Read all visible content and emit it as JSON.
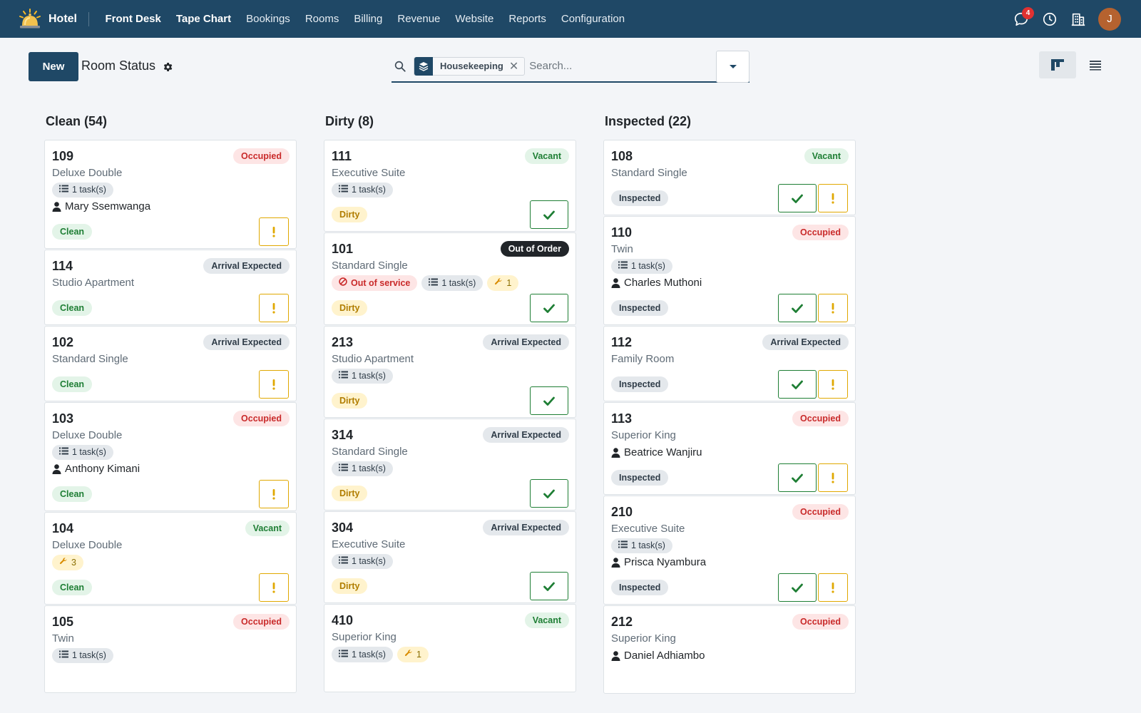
{
  "app": {
    "brand": "Hotel"
  },
  "nav": [
    "Front Desk",
    "Tape Chart",
    "Bookings",
    "Rooms",
    "Billing",
    "Revenue",
    "Website",
    "Reports",
    "Configuration"
  ],
  "nav_active": [
    "Front Desk",
    "Tape Chart"
  ],
  "topbar": {
    "notification_count": "4",
    "user_initial": "J"
  },
  "control": {
    "new_label": "New",
    "title": "Room Status",
    "facet_label": "Housekeeping",
    "search_placeholder": "Search..."
  },
  "colors": {
    "primary": "#1f4866",
    "ok": "#1e7e34",
    "warn": "#e0a800",
    "danger": "#c92a2a"
  },
  "columns": [
    {
      "title": "Clean (54)",
      "cards": [
        {
          "room": "109",
          "type": "Deluxe Double",
          "badge": "Occupied",
          "badge_kind": "occupied",
          "tasks": "1 task(s)",
          "guest": "Mary Ssemwanga",
          "status": "Clean",
          "status_kind": "clean",
          "actions": [
            "warn"
          ]
        },
        {
          "room": "114",
          "type": "Studio Apartment",
          "badge": "Arrival Expected",
          "badge_kind": "arrival",
          "status": "Clean",
          "status_kind": "clean",
          "actions": [
            "warn"
          ]
        },
        {
          "room": "102",
          "type": "Standard Single",
          "badge": "Arrival Expected",
          "badge_kind": "arrival",
          "status": "Clean",
          "status_kind": "clean",
          "actions": [
            "warn"
          ]
        },
        {
          "room": "103",
          "type": "Deluxe Double",
          "badge": "Occupied",
          "badge_kind": "occupied",
          "tasks": "1 task(s)",
          "guest": "Anthony Kimani",
          "status": "Clean",
          "status_kind": "clean",
          "actions": [
            "warn"
          ]
        },
        {
          "room": "104",
          "type": "Deluxe Double",
          "badge": "Vacant",
          "badge_kind": "vacant",
          "maintenance": "3",
          "status": "Clean",
          "status_kind": "clean",
          "actions": [
            "warn"
          ]
        },
        {
          "room": "105",
          "type": "Twin",
          "badge": "Occupied",
          "badge_kind": "occupied",
          "tasks": "1 task(s)"
        }
      ]
    },
    {
      "title": "Dirty (8)",
      "cards": [
        {
          "room": "111",
          "type": "Executive Suite",
          "badge": "Vacant",
          "badge_kind": "vacant",
          "tasks": "1 task(s)",
          "status": "Dirty",
          "status_kind": "dirty",
          "actions": [
            "ok"
          ]
        },
        {
          "room": "101",
          "type": "Standard Single",
          "badge": "Out of Order",
          "badge_kind": "ooo",
          "oos": "Out of service",
          "tasks": "1 task(s)",
          "maintenance": "1",
          "status": "Dirty",
          "status_kind": "dirty",
          "actions": [
            "ok"
          ]
        },
        {
          "room": "213",
          "type": "Studio Apartment",
          "badge": "Arrival Expected",
          "badge_kind": "arrival",
          "tasks": "1 task(s)",
          "status": "Dirty",
          "status_kind": "dirty",
          "actions": [
            "ok"
          ]
        },
        {
          "room": "314",
          "type": "Standard Single",
          "badge": "Arrival Expected",
          "badge_kind": "arrival",
          "tasks": "1 task(s)",
          "status": "Dirty",
          "status_kind": "dirty",
          "actions": [
            "ok"
          ]
        },
        {
          "room": "304",
          "type": "Executive Suite",
          "badge": "Arrival Expected",
          "badge_kind": "arrival",
          "tasks": "1 task(s)",
          "status": "Dirty",
          "status_kind": "dirty",
          "actions": [
            "ok"
          ]
        },
        {
          "room": "410",
          "type": "Superior King",
          "badge": "Vacant",
          "badge_kind": "vacant",
          "tasks": "1 task(s)",
          "maintenance": "1"
        }
      ]
    },
    {
      "title": "Inspected (22)",
      "cards": [
        {
          "room": "108",
          "type": "Standard Single",
          "badge": "Vacant",
          "badge_kind": "vacant",
          "status": "Inspected",
          "status_kind": "inspected",
          "actions": [
            "ok",
            "warn"
          ]
        },
        {
          "room": "110",
          "type": "Twin",
          "badge": "Occupied",
          "badge_kind": "occupied",
          "tasks": "1 task(s)",
          "guest": "Charles Muthoni",
          "status": "Inspected",
          "status_kind": "inspected",
          "actions": [
            "ok",
            "warn"
          ]
        },
        {
          "room": "112",
          "type": "Family Room",
          "badge": "Arrival Expected",
          "badge_kind": "arrival",
          "status": "Inspected",
          "status_kind": "inspected",
          "actions": [
            "ok",
            "warn"
          ]
        },
        {
          "room": "113",
          "type": "Superior King",
          "badge": "Occupied",
          "badge_kind": "occupied",
          "guest": "Beatrice Wanjiru",
          "status": "Inspected",
          "status_kind": "inspected",
          "actions": [
            "ok",
            "warn"
          ]
        },
        {
          "room": "210",
          "type": "Executive Suite",
          "badge": "Occupied",
          "badge_kind": "occupied",
          "tasks": "1 task(s)",
          "guest": "Prisca Nyambura",
          "status": "Inspected",
          "status_kind": "inspected",
          "actions": [
            "ok",
            "warn"
          ]
        },
        {
          "room": "212",
          "type": "Superior King",
          "badge": "Occupied",
          "badge_kind": "occupied",
          "guest": "Daniel Adhiambo"
        }
      ]
    }
  ]
}
